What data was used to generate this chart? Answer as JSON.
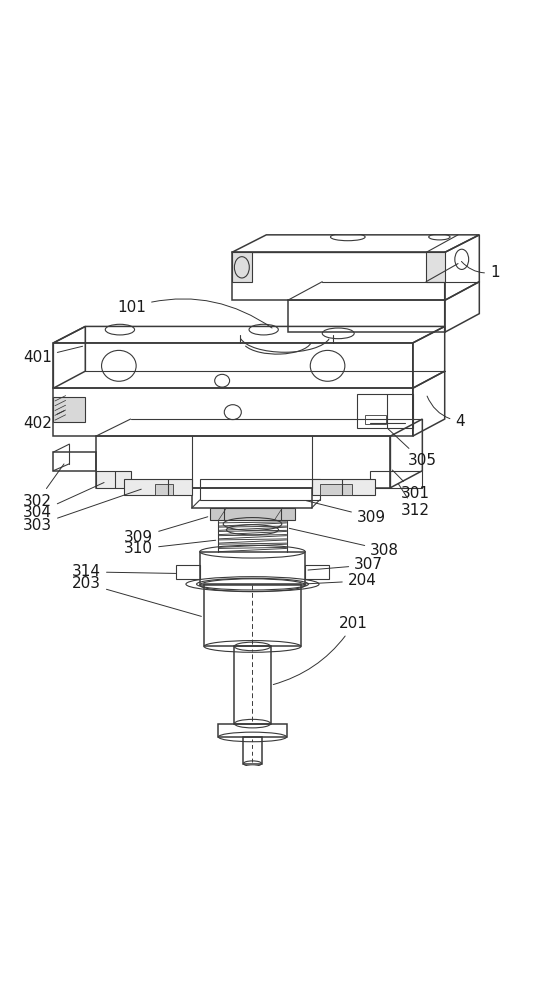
{
  "figure_width": 5.38,
  "figure_height": 10.0,
  "dpi": 100,
  "bg_color": "#ffffff",
  "line_color": "#3a3a3a",
  "line_width": 0.8,
  "label_fontsize": 11
}
